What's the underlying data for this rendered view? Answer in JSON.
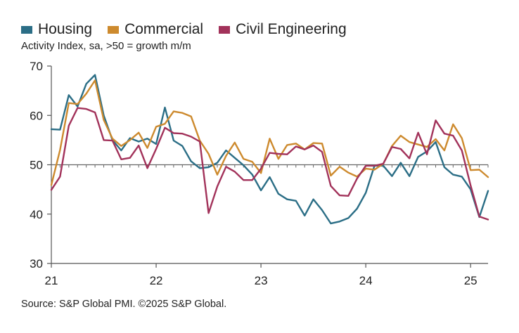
{
  "legend": [
    {
      "name": "Housing",
      "color": "#2b6e86"
    },
    {
      "name": "Commercial",
      "color": "#cd8a2e"
    },
    {
      "name": "Civil Engineering",
      "color": "#a2325a"
    }
  ],
  "subtitle": "Activity Index, sa, >50 = growth m/m",
  "source": "Source: S&P Global PMI. ©2025 S&P Global.",
  "chart_data": {
    "type": "line",
    "ylim": [
      30,
      70
    ],
    "yticks": [
      "30",
      "40",
      "50",
      "60",
      "70"
    ],
    "xtick_labels": [
      "21",
      "22",
      "23",
      "24",
      "25"
    ],
    "xtick_month_index": [
      0,
      12,
      24,
      36,
      48
    ],
    "x": [
      "Jan 21",
      "Feb 21",
      "Mar 21",
      "Apr 21",
      "May 21",
      "Jun 21",
      "Jul 21",
      "Aug 21",
      "Sep 21",
      "Oct 21",
      "Nov 21",
      "Dec 21",
      "Jan 22",
      "Feb 22",
      "Mar 22",
      "Apr 22",
      "May 22",
      "Jun 22",
      "Jul 22",
      "Aug 22",
      "Sep 22",
      "Oct 22",
      "Nov 22",
      "Dec 22",
      "Jan 23",
      "Feb 23",
      "Mar 23",
      "Apr 23",
      "May 23",
      "Jun 23",
      "Jul 23",
      "Aug 23",
      "Sep 23",
      "Oct 23",
      "Nov 23",
      "Dec 23",
      "Jan 24",
      "Feb 24",
      "Mar 24",
      "Apr 24",
      "May 24",
      "Jun 24",
      "Jul 24",
      "Aug 24",
      "Sep 24",
      "Oct 24",
      "Nov 24",
      "Dec 24",
      "Jan 25",
      "Feb 25",
      "Mar 25"
    ],
    "reference_line": 50,
    "series": [
      {
        "name": "Housing",
        "color": "#2b6e86",
        "values": [
          57.2,
          57.1,
          64.1,
          61.8,
          66.4,
          68.2,
          60.0,
          55.0,
          52.9,
          55.4,
          54.7,
          55.3,
          54.2,
          61.6,
          54.9,
          53.8,
          50.7,
          49.3,
          49.5,
          50.4,
          52.9,
          51.4,
          49.9,
          48.0,
          44.8,
          47.5,
          44.1,
          43.0,
          42.7,
          39.7,
          43.0,
          40.8,
          38.1,
          38.5,
          39.2,
          41.1,
          44.3,
          49.8,
          49.8,
          47.7,
          50.4,
          47.7,
          51.6,
          52.7,
          54.6,
          49.5,
          48.0,
          47.6,
          45.0,
          39.4,
          44.7
        ]
      },
      {
        "name": "Commercial",
        "color": "#cd8a2e",
        "values": [
          45.9,
          53.0,
          62.5,
          62.3,
          64.4,
          67.1,
          59.1,
          55.3,
          53.8,
          55.0,
          56.5,
          53.4,
          57.7,
          58.3,
          60.8,
          60.5,
          59.8,
          54.9,
          52.2,
          48.0,
          51.8,
          54.5,
          51.2,
          50.6,
          48.3,
          55.3,
          51.2,
          54.0,
          54.3,
          53.1,
          54.4,
          54.3,
          47.8,
          49.6,
          48.4,
          47.6,
          49.2,
          49.0,
          50.2,
          53.8,
          55.9,
          54.6,
          54.1,
          53.6,
          55.2,
          52.9,
          58.2,
          55.4,
          48.9,
          49.0,
          47.5
        ]
      },
      {
        "name": "Civil Engineering",
        "color": "#a2325a",
        "values": [
          44.9,
          47.6,
          57.9,
          61.5,
          61.3,
          60.6,
          55.0,
          54.9,
          51.1,
          51.4,
          53.9,
          49.3,
          53.2,
          57.5,
          56.4,
          56.3,
          55.7,
          54.7,
          40.2,
          45.6,
          49.6,
          48.6,
          46.9,
          46.9,
          49.2,
          52.4,
          52.2,
          52.1,
          53.7,
          53.1,
          53.9,
          52.6,
          45.7,
          43.8,
          43.7,
          47.2,
          49.8,
          49.8,
          50.2,
          53.6,
          53.2,
          51.3,
          56.5,
          52.1,
          59.0,
          56.3,
          55.9,
          52.9,
          45.8,
          39.5,
          38.9
        ]
      }
    ]
  }
}
